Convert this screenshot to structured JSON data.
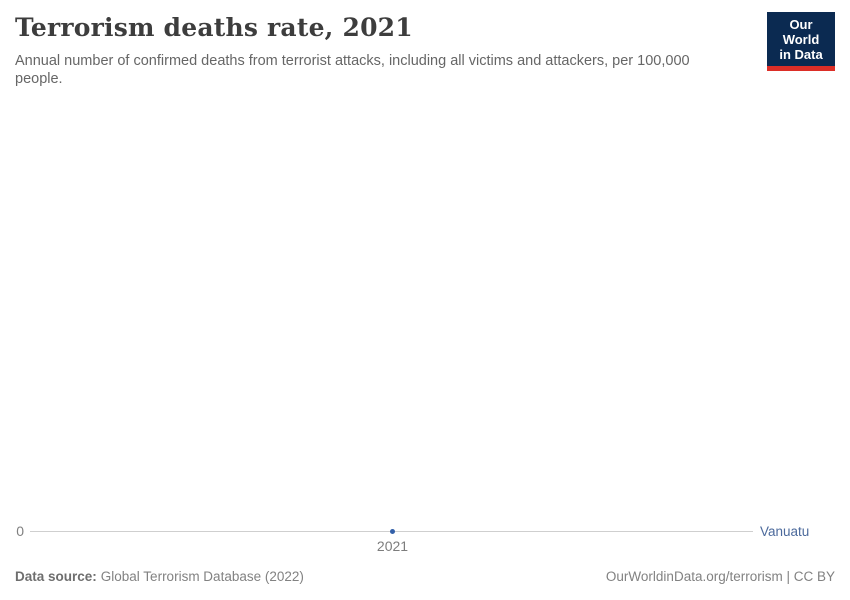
{
  "header": {
    "title": "Terrorism deaths rate, 2021",
    "subtitle": "Annual number of confirmed deaths from terrorist attacks, including all victims and attackers, per 100,000 people.",
    "logo": {
      "line1": "Our World",
      "line2": "in Data"
    }
  },
  "chart_data": {
    "type": "line",
    "title": "Terrorism deaths rate, 2021",
    "subtitle": "Annual number of confirmed deaths from terrorist attacks, including all victims and attackers, per 100,000 people.",
    "x": [
      2021
    ],
    "series": [
      {
        "name": "Vanuatu",
        "values": [
          0
        ]
      }
    ],
    "xlabel": "",
    "ylabel": "",
    "x_tick_labels": [
      "2021"
    ],
    "y_tick_labels": [
      "0"
    ],
    "ylim": [
      0,
      0
    ],
    "grid": false,
    "legend_position": "right-of-line",
    "point_color": "#3360a9",
    "series_label_color": "#4c6a9c",
    "axis_line_color": "#cfcfcf"
  },
  "axis": {
    "y_zero_label": "0",
    "x_tick_label": "2021",
    "series_label": "Vanuatu"
  },
  "footer": {
    "source_label": "Data source:",
    "source_value": "Global Terrorism Database (2022)",
    "credit": "OurWorldinData.org/terrorism | CC BY"
  },
  "colors": {
    "title": "#3d3d3d",
    "subtitle": "#666666",
    "logo_bg": "#0b2a51",
    "logo_accent": "#dc2e27",
    "point": "#3360a9",
    "series_label": "#4c6a9c",
    "axis_line": "#cfcfcf",
    "footer_text": "#828282"
  }
}
